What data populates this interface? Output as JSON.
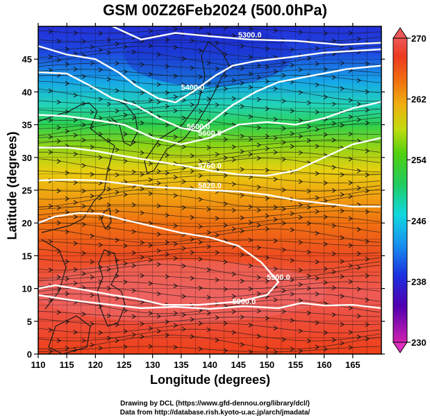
{
  "title": "GSM 00Z26Feb2024 (500.0hPa)",
  "x_axis": {
    "label": "Longitude (degrees)",
    "range": [
      110,
      170
    ],
    "ticks": [
      110,
      115,
      120,
      125,
      130,
      135,
      140,
      145,
      150,
      155,
      160,
      165
    ]
  },
  "y_axis": {
    "label": "Latitude  (degrees)",
    "range": [
      0,
      50
    ],
    "ticks": [
      0,
      5,
      10,
      15,
      20,
      25,
      30,
      35,
      40,
      45
    ]
  },
  "colorbar": {
    "range": [
      230,
      270
    ],
    "ticks": [
      230,
      238,
      246,
      254,
      262,
      270
    ],
    "colors": [
      "#cc1fb0",
      "#4a00b0",
      "#2030e0",
      "#1890f0",
      "#10d8e8",
      "#20d070",
      "#40d020",
      "#a8dc10",
      "#f0c010",
      "#f08010",
      "#ee4020",
      "#ee5050"
    ]
  },
  "contours": [
    {
      "label": "5300.0",
      "points": [
        [
          123,
          50
        ],
        [
          128,
          48
        ],
        [
          134,
          49
        ],
        [
          140,
          48.5
        ],
        [
          147,
          48
        ],
        [
          155,
          47.8
        ],
        [
          163,
          47.2
        ],
        [
          170,
          47.5
        ]
      ]
    },
    {
      "label": "5400.0",
      "points": [
        [
          110,
          47
        ],
        [
          115,
          45.7
        ],
        [
          120,
          45
        ],
        [
          124,
          43
        ],
        [
          127,
          41
        ],
        [
          131,
          39
        ],
        [
          134,
          38.4
        ],
        [
          137,
          40
        ],
        [
          141,
          42.5
        ],
        [
          144,
          44
        ],
        [
          148,
          44.7
        ],
        [
          154,
          45.3
        ],
        [
          160,
          46
        ],
        [
          170,
          46.5
        ]
      ]
    },
    {
      "label": "5600.0",
      "points": [
        [
          110,
          43
        ],
        [
          115,
          42.8
        ],
        [
          119,
          41
        ],
        [
          123,
          39
        ],
        [
          127,
          38
        ],
        [
          131,
          36
        ],
        [
          135,
          34.5
        ],
        [
          138,
          34
        ],
        [
          141,
          36
        ],
        [
          144,
          38
        ],
        [
          148,
          40
        ],
        [
          152,
          41.5
        ],
        [
          158,
          42.5
        ],
        [
          164,
          43.5
        ],
        [
          170,
          44
        ]
      ]
    },
    {
      "label": "5600.0",
      "points": [
        [
          110,
          36.5
        ],
        [
          115,
          36.3
        ],
        [
          120,
          35.7
        ],
        [
          125,
          35
        ],
        [
          130,
          33
        ],
        [
          135,
          32
        ],
        [
          140,
          33
        ],
        [
          145,
          35
        ],
        [
          150,
          35.4
        ],
        [
          155,
          35
        ],
        [
          160,
          36
        ],
        [
          165,
          37.5
        ],
        [
          170,
          38.5
        ]
      ]
    },
    {
      "label": "5760.0",
      "points": [
        [
          110,
          31.5
        ],
        [
          115,
          31.5
        ],
        [
          120,
          31
        ],
        [
          125,
          30.2
        ],
        [
          130,
          29.5
        ],
        [
          135,
          28.8
        ],
        [
          140,
          28
        ],
        [
          145,
          27.4
        ],
        [
          150,
          27.2
        ],
        [
          155,
          28
        ],
        [
          160,
          30
        ],
        [
          165,
          32
        ],
        [
          170,
          33
        ]
      ]
    },
    {
      "label": "5820.0",
      "points": [
        [
          110,
          26.5
        ],
        [
          115,
          26.6
        ],
        [
          120,
          26.5
        ],
        [
          125,
          26
        ],
        [
          130,
          25.5
        ],
        [
          135,
          25.3
        ],
        [
          140,
          25
        ],
        [
          145,
          24.8
        ],
        [
          150,
          24.3
        ],
        [
          155,
          23.5
        ],
        [
          160,
          23
        ],
        [
          165,
          22.5
        ],
        [
          170,
          22.5
        ]
      ]
    },
    {
      "label": "5900.0",
      "points": [
        [
          110,
          20
        ],
        [
          113,
          21
        ],
        [
          117,
          21.5
        ],
        [
          121,
          21.4
        ],
        [
          125,
          20.5
        ],
        [
          130,
          19.5
        ],
        [
          135,
          18.5
        ],
        [
          140,
          17.8
        ],
        [
          145,
          16.5
        ],
        [
          149,
          14
        ],
        [
          152,
          11
        ],
        [
          150,
          9
        ],
        [
          145,
          8
        ],
        [
          138,
          7.5
        ],
        [
          132,
          7.5
        ],
        [
          127,
          8.5
        ],
        [
          123,
          9
        ],
        [
          118,
          9.8
        ],
        [
          113,
          10.5
        ],
        [
          110,
          10
        ]
      ]
    },
    {
      "label": "5900.0",
      "points": [
        [
          110,
          9
        ],
        [
          116,
          8.2
        ],
        [
          122,
          7.6
        ],
        [
          128,
          7
        ],
        [
          134,
          7.2
        ],
        [
          140,
          6.9
        ],
        [
          146,
          7.3
        ],
        [
          152,
          7
        ],
        [
          156,
          7.8
        ],
        [
          160,
          7.4
        ],
        [
          165,
          7.5
        ],
        [
          170,
          7
        ]
      ]
    }
  ],
  "credits": [
    "Drawing by DCL (https://www.gfd-dennou.org/library/dcl/)",
    "Data from http://database.rish.kyoto-u.ac.jp/arch/jmadata/"
  ]
}
